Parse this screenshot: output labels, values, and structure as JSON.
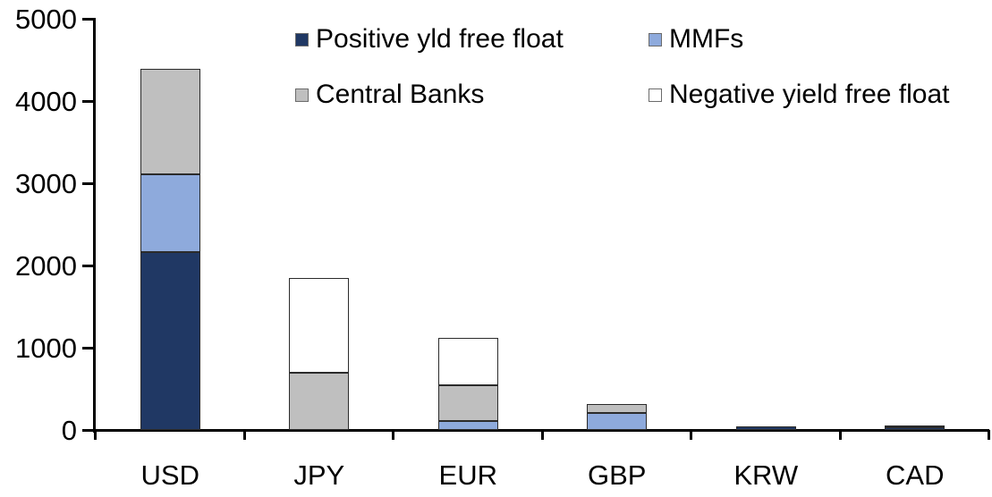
{
  "chart_data": {
    "type": "bar",
    "stacked": true,
    "title": "",
    "xlabel": "",
    "ylabel": "",
    "categories": [
      "USD",
      "JPY",
      "EUR",
      "GBP",
      "KRW",
      "CAD"
    ],
    "series": [
      {
        "name": "Positive yld free float",
        "color": "#203864",
        "values": [
          2160,
          0,
          0,
          0,
          40,
          35
        ]
      },
      {
        "name": "MMFs",
        "color": "#8EAADC",
        "values": [
          950,
          0,
          110,
          210,
          0,
          0
        ]
      },
      {
        "name": "Central Banks",
        "color": "#BFBFBF",
        "values": [
          1280,
          700,
          435,
          110,
          0,
          20
        ]
      },
      {
        "name": "Negative yield free float",
        "color": "#FFFFFF",
        "values": [
          0,
          1150,
          570,
          0,
          0,
          0
        ]
      }
    ],
    "totals": [
      4390,
      1850,
      1115,
      320,
      40,
      55
    ],
    "ylim": [
      0,
      5000
    ],
    "yticks": [
      0,
      1000,
      2000,
      3000,
      4000,
      5000
    ],
    "grid": false,
    "legend_position": "top",
    "legend_rows": [
      [
        "Positive yld free float",
        "MMFs"
      ],
      [
        "Central Banks",
        "Negative yield free float"
      ]
    ]
  },
  "colors": {
    "axis": "#000000",
    "text": "#000000",
    "segment_border": "#2b2b2b",
    "background": "#ffffff"
  }
}
